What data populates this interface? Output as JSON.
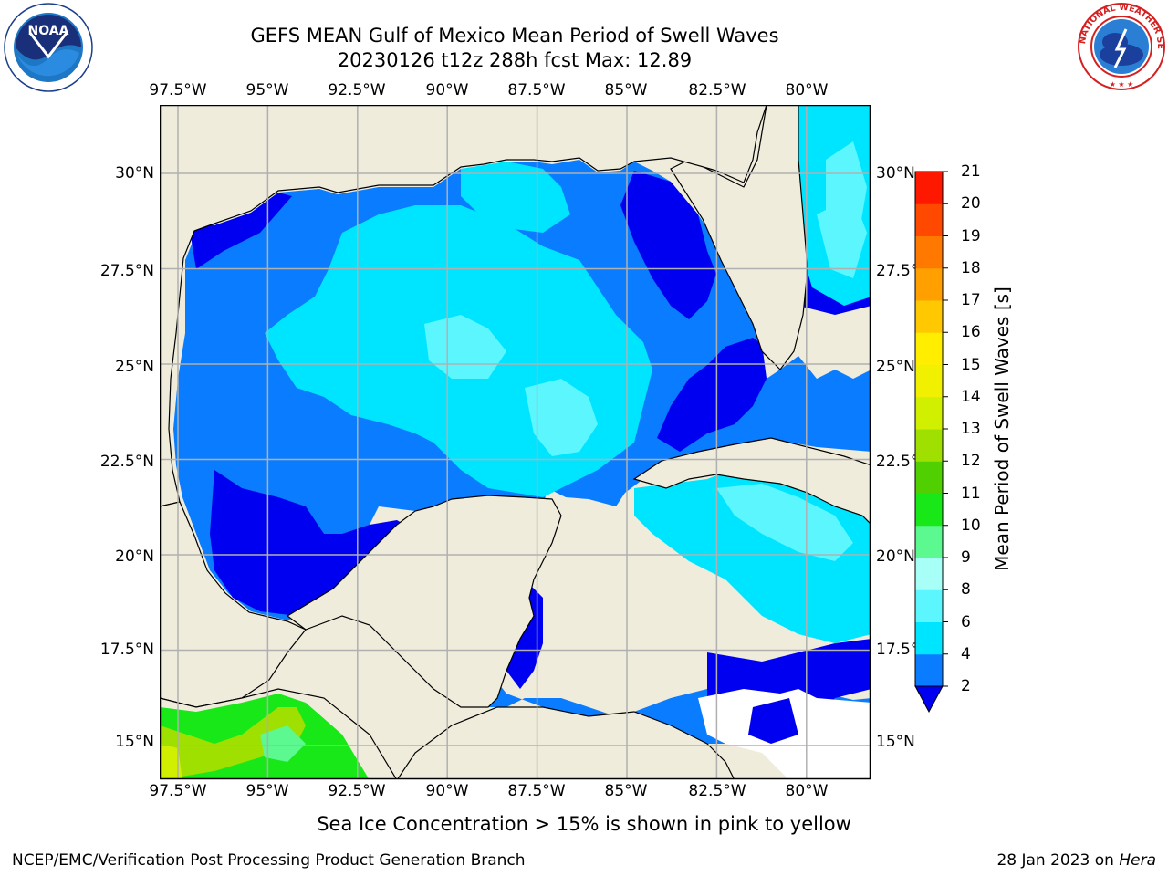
{
  "title": {
    "line1": "GEFS MEAN Gulf of Mexico Mean Period of Swell Waves",
    "line2": "20230126 t12z 288h fcst   Max: 12.89"
  },
  "logos": {
    "left": {
      "icon": "noaa-logo",
      "text": "NOAA"
    },
    "right": {
      "icon": "nws-logo",
      "ring_text": "NATIONAL WEATHER SERVICE"
    }
  },
  "axes": {
    "lon_labels": [
      "97.5°W",
      "95°W",
      "92.5°W",
      "90°W",
      "87.5°W",
      "85°W",
      "82.5°W",
      "80°W"
    ],
    "lat_labels": [
      "30°N",
      "27.5°N",
      "25°N",
      "22.5°N",
      "20°N",
      "17.5°N",
      "15°N"
    ],
    "lon_range": [
      -98,
      -78.3
    ],
    "lat_range": [
      14,
      31.6
    ]
  },
  "colorbar": {
    "label": "Mean Period of Swell Waves [s]",
    "ticks": [
      "2",
      "4",
      "6",
      "8",
      "9",
      "10",
      "11",
      "12",
      "13",
      "14",
      "15",
      "16",
      "17",
      "18",
      "19",
      "20",
      "21"
    ],
    "colors": [
      "#0a7cff",
      "#00e5ff",
      "#5cf6ff",
      "#a8fff8",
      "#5cf890",
      "#18e818",
      "#50d000",
      "#a0e000",
      "#d0f000",
      "#f0f000",
      "#ffee00",
      "#ffc800",
      "#ffa000",
      "#ff7800",
      "#ff4800",
      "#ff1800"
    ],
    "extend_color": "#0000f0"
  },
  "note": "Sea Ice Concentration > 15% is shown in pink to yellow",
  "footer": {
    "left": "NCEP/EMC/Verification Post Processing Product Generation Branch",
    "right_date": "28 Jan 2023 on ",
    "right_host": "Hera"
  },
  "colors": {
    "land": "#efecdc",
    "grid": "#b0b0b0",
    "deep_blue": "#0000f0",
    "mid_blue": "#0a7cff",
    "cyan": "#00e5ff",
    "light_cyan": "#5cf6ff",
    "pale_cyan": "#a8fff8",
    "green": "#18e818",
    "lime": "#a0e000"
  }
}
